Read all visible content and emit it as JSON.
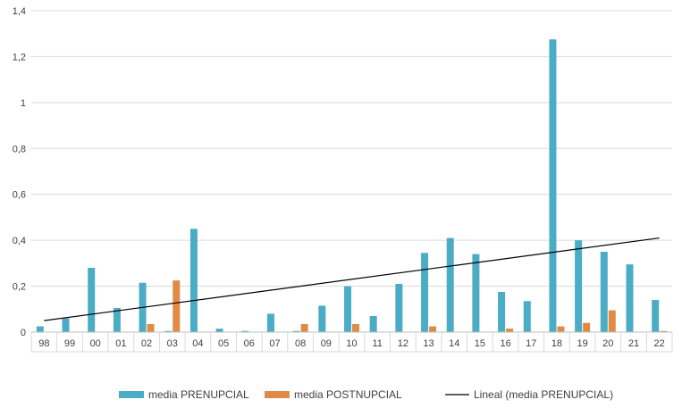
{
  "chart_data": {
    "type": "bar",
    "categories": [
      "98",
      "99",
      "00",
      "01",
      "02",
      "03",
      "04",
      "05",
      "06",
      "07",
      "08",
      "09",
      "10",
      "11",
      "12",
      "13",
      "14",
      "15",
      "16",
      "17",
      "18",
      "19",
      "20",
      "21",
      "22"
    ],
    "series": [
      {
        "name": "media PRENUPCIAL",
        "color": "#4bacc6",
        "values": [
          0.025,
          0.06,
          0.28,
          0.105,
          0.215,
          0.005,
          0.45,
          0.015,
          0.005,
          0.08,
          0.005,
          0.115,
          0.2,
          0.07,
          0.21,
          0.345,
          0.41,
          0.34,
          0.175,
          0.135,
          1.275,
          0.4,
          0.35,
          0.295,
          0.14
        ]
      },
      {
        "name": "media POSTNUPCIAL",
        "color": "#e08b45",
        "values": [
          0,
          0,
          0,
          0,
          0.035,
          0.225,
          0,
          0,
          0,
          0,
          0.035,
          0,
          0.035,
          0,
          0,
          0.025,
          0,
          0,
          0.015,
          0,
          0.025,
          0.04,
          0.095,
          0,
          0.005
        ]
      }
    ],
    "trendline": {
      "name": "Lineal (media PRENUPCIAL)",
      "color": "#000000",
      "start": 0.05,
      "end": 0.41
    },
    "ylim": [
      0,
      1.4
    ],
    "yticks": [
      "0",
      "0,2",
      "0,4",
      "0,6",
      "0,8",
      "1",
      "1,2",
      "1,4"
    ],
    "grid": true,
    "legend_position": "bottom"
  }
}
